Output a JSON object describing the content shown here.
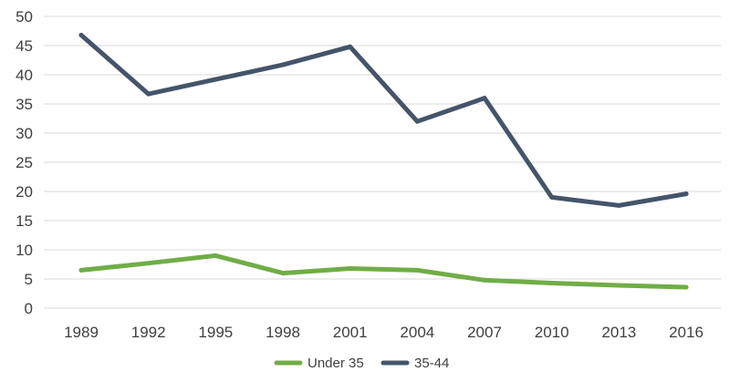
{
  "chart_data": {
    "type": "line",
    "title": "",
    "xlabel": "",
    "ylabel": "",
    "categories": [
      "1989",
      "1992",
      "1995",
      "1998",
      "2001",
      "2004",
      "2007",
      "2010",
      "2013",
      "2016"
    ],
    "ylim": [
      0,
      50
    ],
    "yticks": [
      0,
      5,
      10,
      15,
      20,
      25,
      30,
      35,
      40,
      45,
      50
    ],
    "grid": true,
    "legend_position": "bottom",
    "series": [
      {
        "name": "Under 35",
        "color": "#70ad47",
        "values": [
          6.5,
          7.7,
          9.0,
          6.0,
          6.8,
          6.5,
          4.8,
          4.3,
          3.9,
          3.6
        ]
      },
      {
        "name": "35-44",
        "color": "#44546a",
        "values": [
          46.8,
          36.7,
          39.2,
          41.7,
          44.8,
          32.0,
          36.0,
          19.0,
          17.6,
          19.6
        ]
      }
    ]
  }
}
